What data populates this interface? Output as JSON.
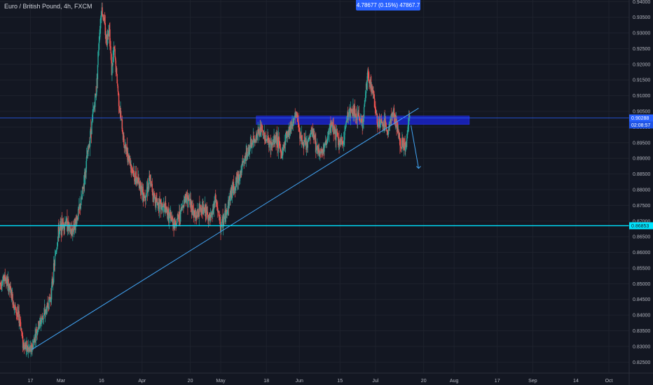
{
  "header": {
    "title": "Euro / British Pound, 4h, FXCM",
    "measure_label": "4.78677 (0.15%) 47867.7"
  },
  "colors": {
    "background": "#131722",
    "grid": "#1e222d",
    "up": "#26a69a",
    "down": "#ef5350",
    "trendline": "#42a5f5",
    "support_line": "#00e5ff",
    "resistance_zone": "#1a23c9",
    "price_line": "#2962ff",
    "axis_text": "#b2b5be"
  },
  "chart_data": {
    "type": "candlestick",
    "symbol": "Euro / British Pound",
    "interval": "4h",
    "source": "FXCM",
    "y_ticks": [
      "0.94000",
      "0.93500",
      "0.93000",
      "0.92500",
      "0.92000",
      "0.91500",
      "0.91000",
      "0.90500",
      "0.90000",
      "0.89500",
      "0.89000",
      "0.88500",
      "0.88000",
      "0.87500",
      "0.87000",
      "0.86500",
      "0.86000",
      "0.85500",
      "0.85000",
      "0.84500",
      "0.84000",
      "0.83500",
      "0.83000",
      "0.82500"
    ],
    "y_tick_values": [
      0.94,
      0.935,
      0.93,
      0.925,
      0.92,
      0.915,
      0.91,
      0.905,
      0.9,
      0.895,
      0.89,
      0.885,
      0.88,
      0.875,
      0.87,
      0.865,
      0.86,
      0.855,
      0.85,
      0.845,
      0.84,
      0.835,
      0.83,
      0.825
    ],
    "ylim": [
      0.8215,
      0.9405
    ],
    "x_ticks": [
      "17",
      "Mar",
      "16",
      "Apr",
      "20",
      "May",
      "18",
      "Jun",
      "15",
      "Jul",
      "20",
      "Aug",
      "17",
      "Sep",
      "14",
      "Oct"
    ],
    "x_tick_days": [
      17,
      29,
      45,
      61,
      80,
      92,
      110,
      123,
      139,
      153,
      172,
      184,
      201,
      215,
      232,
      245
    ],
    "xlim_days": [
      5,
      253
    ],
    "x_axis_note": "days counted from Feb 1",
    "price_path": [
      [
        5,
        0.85
      ],
      [
        7,
        0.852
      ],
      [
        9,
        0.848
      ],
      [
        11,
        0.842
      ],
      [
        13,
        0.838
      ],
      [
        14,
        0.831
      ],
      [
        16,
        0.829
      ],
      [
        17.5,
        0.829
      ],
      [
        19,
        0.834
      ],
      [
        21,
        0.838
      ],
      [
        23,
        0.841
      ],
      [
        25,
        0.846
      ],
      [
        27,
        0.86
      ],
      [
        28,
        0.866
      ],
      [
        29,
        0.868
      ],
      [
        31,
        0.87
      ],
      [
        33,
        0.866
      ],
      [
        35,
        0.87
      ],
      [
        37,
        0.876
      ],
      [
        39,
        0.888
      ],
      [
        41,
        0.9
      ],
      [
        43,
        0.912
      ],
      [
        44,
        0.928
      ],
      [
        45,
        0.938
      ],
      [
        46,
        0.934
      ],
      [
        47,
        0.927
      ],
      [
        48,
        0.933
      ],
      [
        49,
        0.918
      ],
      [
        50,
        0.925
      ],
      [
        52,
        0.907
      ],
      [
        54,
        0.894
      ],
      [
        56,
        0.89
      ],
      [
        58,
        0.884
      ],
      [
        60,
        0.882
      ],
      [
        62,
        0.878
      ],
      [
        64,
        0.883
      ],
      [
        66,
        0.877
      ],
      [
        68,
        0.875
      ],
      [
        70,
        0.874
      ],
      [
        72,
        0.871
      ],
      [
        74,
        0.869
      ],
      [
        76,
        0.872
      ],
      [
        78,
        0.878
      ],
      [
        80,
        0.876
      ],
      [
        82,
        0.871
      ],
      [
        84,
        0.874
      ],
      [
        86,
        0.873
      ],
      [
        88,
        0.87
      ],
      [
        90,
        0.877
      ],
      [
        92,
        0.868
      ],
      [
        94,
        0.872
      ],
      [
        96,
        0.879
      ],
      [
        98,
        0.882
      ],
      [
        100,
        0.886
      ],
      [
        102,
        0.891
      ],
      [
        104,
        0.894
      ],
      [
        106,
        0.897
      ],
      [
        108,
        0.899
      ],
      [
        110,
        0.896
      ],
      [
        112,
        0.894
      ],
      [
        114,
        0.897
      ],
      [
        116,
        0.891
      ],
      [
        118,
        0.898
      ],
      [
        120,
        0.901
      ],
      [
        122,
        0.904
      ],
      [
        124,
        0.895
      ],
      [
        126,
        0.894
      ],
      [
        128,
        0.899
      ],
      [
        130,
        0.893
      ],
      [
        132,
        0.892
      ],
      [
        134,
        0.896
      ],
      [
        136,
        0.901
      ],
      [
        138,
        0.896
      ],
      [
        140,
        0.894
      ],
      [
        142,
        0.904
      ],
      [
        144,
        0.905
      ],
      [
        146,
        0.903
      ],
      [
        148,
        0.902
      ],
      [
        150,
        0.917
      ],
      [
        152,
        0.911
      ],
      [
        154,
        0.901
      ],
      [
        156,
        0.901
      ],
      [
        158,
        0.899
      ],
      [
        160,
        0.905
      ],
      [
        162,
        0.898
      ],
      [
        163,
        0.895
      ],
      [
        165,
        0.894
      ],
      [
        166.5,
        0.904
      ]
    ],
    "annotations": {
      "trendline": {
        "from": [
          17.5,
          0.829
        ],
        "to": [
          170,
          0.906
        ]
      },
      "support_level": 0.8685,
      "resistance_zone": {
        "from_day": 106,
        "to_day": 190,
        "low": 0.9008,
        "high": 0.9035
      },
      "current_price_line": 0.90288,
      "projection_arrow": {
        "from": [
          167,
          0.9005
        ],
        "to": [
          170,
          0.8868
        ]
      }
    },
    "price_tags": {
      "current_price": "0.90288",
      "countdown": "02:08:57",
      "support": "0.86853"
    }
  }
}
